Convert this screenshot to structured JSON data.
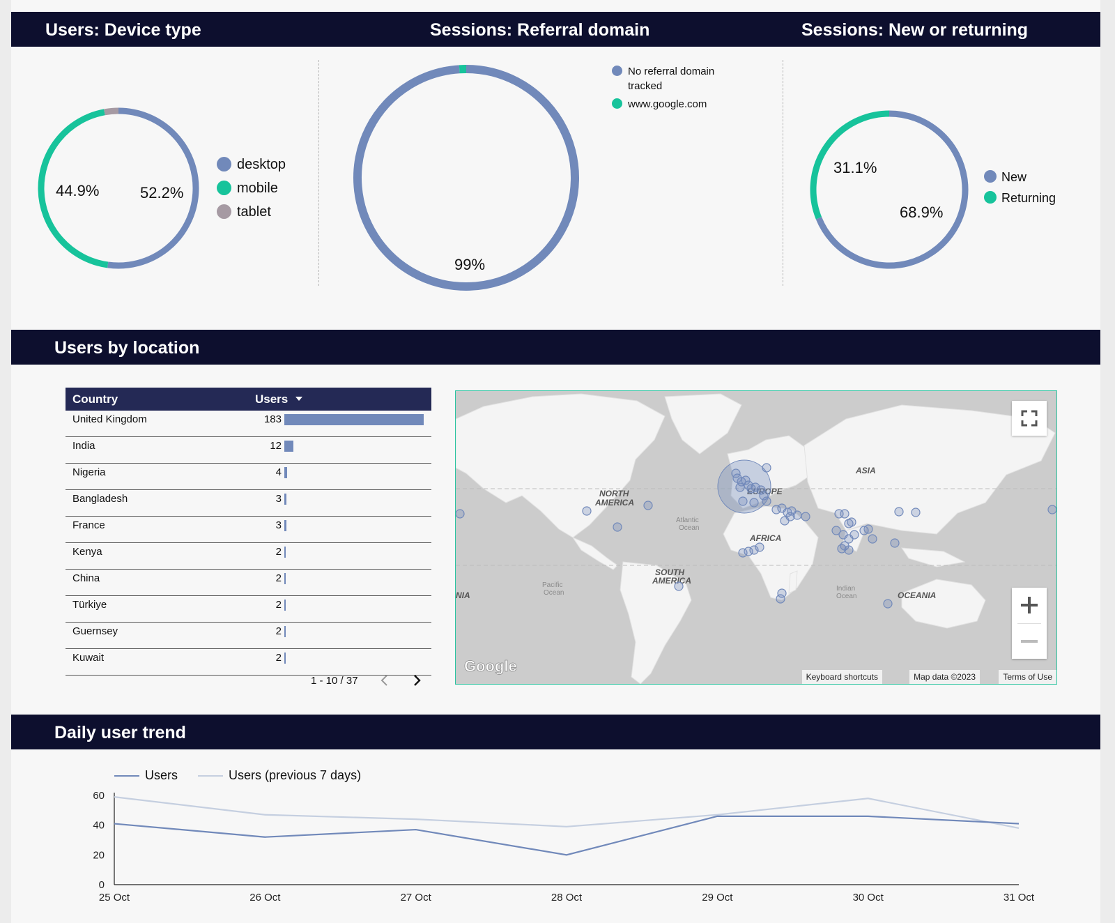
{
  "sections": {
    "device": {
      "title": "Users: Device type"
    },
    "referral": {
      "title": "Sessions: Referral domain"
    },
    "newret": {
      "title": "Sessions: New or returning"
    },
    "location": {
      "title": "Users by location"
    },
    "trend": {
      "title": "Daily user trend"
    }
  },
  "device_chart": {
    "type": "pie",
    "slices": [
      {
        "name": "desktop",
        "value": 52.2,
        "label": "52.2%",
        "color": "#7189ba"
      },
      {
        "name": "mobile",
        "value": 44.9,
        "label": "44.9%",
        "color": "#17c39b"
      },
      {
        "name": "tablet",
        "value": 2.9,
        "label": "",
        "color": "#a69aa3"
      }
    ]
  },
  "referral_chart": {
    "type": "pie",
    "slices": [
      {
        "name": "No referral domain tracked",
        "name_line1": "No referral domain",
        "name_line2": "tracked",
        "value": 99,
        "label": "99%",
        "color": "#7189ba"
      },
      {
        "name": "www.google.com",
        "value": 1,
        "label": "",
        "color": "#17c39b"
      }
    ]
  },
  "newret_chart": {
    "type": "pie",
    "slices": [
      {
        "name": "New",
        "value": 68.9,
        "label": "68.9%",
        "color": "#7189ba"
      },
      {
        "name": "Returning",
        "value": 31.1,
        "label": "31.1%",
        "color": "#17c39b"
      }
    ]
  },
  "table": {
    "headers": {
      "country": "Country",
      "users": "Users"
    },
    "rows": [
      {
        "country": "United Kingdom",
        "users": 183
      },
      {
        "country": "India",
        "users": 12
      },
      {
        "country": "Nigeria",
        "users": 4
      },
      {
        "country": "Bangladesh",
        "users": 3
      },
      {
        "country": "France",
        "users": 3
      },
      {
        "country": "Kenya",
        "users": 2
      },
      {
        "country": "China",
        "users": 2
      },
      {
        "country": "Türkiye",
        "users": 2
      },
      {
        "country": "Guernsey",
        "users": 2
      },
      {
        "country": "Kuwait",
        "users": 2
      }
    ],
    "pagination": "1 - 10 / 37"
  },
  "map": {
    "labels": {
      "north_america": "NORTH AMERICA",
      "south_america": "SOUTH AMERICA",
      "europe": "EUROPE",
      "africa": "AFRICA",
      "asia": "ASIA",
      "oceania": "OCEANIA",
      "atlantic": "Atlantic Ocean",
      "pacific": "Pacific Ocean",
      "indian": "Indian Ocean"
    },
    "logo": "Google",
    "attribution": {
      "shortcuts": "Keyboard shortcuts",
      "data": "Map data ©2023",
      "terms": "Terms of Use"
    }
  },
  "chart_data": {
    "type": "line",
    "categories": [
      "25 Oct",
      "26 Oct",
      "27 Oct",
      "28 Oct",
      "29 Oct",
      "30 Oct",
      "31 Oct"
    ],
    "series": [
      {
        "name": "Users",
        "values": [
          41,
          32,
          37,
          20,
          46,
          46,
          41
        ],
        "color": "#7189ba"
      },
      {
        "name": "Users (previous 7 days)",
        "values": [
          59,
          47,
          44,
          39,
          47,
          58,
          38
        ],
        "color": "#c5cfe0"
      }
    ],
    "ylim": [
      0,
      60
    ],
    "yticks": [
      0,
      20,
      40,
      60
    ],
    "legend": "top-left",
    "grid": false
  }
}
